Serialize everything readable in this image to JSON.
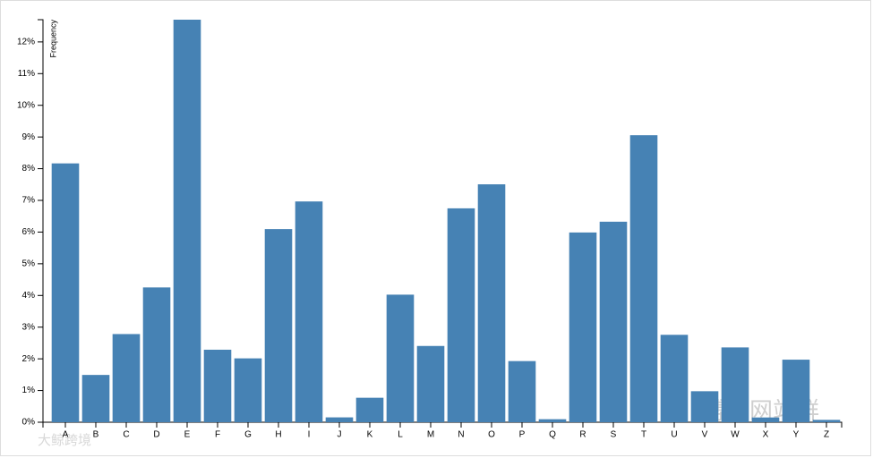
{
  "chart_data": {
    "type": "bar",
    "y_label": "Frequency",
    "categories": [
      "A",
      "B",
      "C",
      "D",
      "E",
      "F",
      "G",
      "H",
      "I",
      "J",
      "K",
      "L",
      "M",
      "N",
      "O",
      "P",
      "Q",
      "R",
      "S",
      "T",
      "U",
      "V",
      "W",
      "X",
      "Y",
      "Z"
    ],
    "values": [
      8.167,
      1.492,
      2.782,
      4.253,
      12.702,
      2.288,
      2.015,
      6.094,
      6.966,
      0.153,
      0.772,
      4.025,
      2.406,
      6.749,
      7.507,
      1.929,
      0.095,
      5.987,
      6.327,
      9.056,
      2.758,
      0.978,
      2.36,
      0.15,
      1.974,
      0.074
    ],
    "color": "#4682b4",
    "ylim": [
      0,
      12.702
    ],
    "yticks": [
      {
        "value": 0,
        "label": "0%"
      },
      {
        "value": 1,
        "label": "1%"
      },
      {
        "value": 2,
        "label": "2%"
      },
      {
        "value": 3,
        "label": "3%"
      },
      {
        "value": 4,
        "label": "4%"
      },
      {
        "value": 5,
        "label": "5%"
      },
      {
        "value": 6,
        "label": "6%"
      },
      {
        "value": 7,
        "label": "7%"
      },
      {
        "value": 8,
        "label": "8%"
      },
      {
        "value": 9,
        "label": "9%"
      },
      {
        "value": 10,
        "label": "10%"
      },
      {
        "value": 11,
        "label": "11%"
      },
      {
        "value": 12,
        "label": "12%"
      }
    ]
  },
  "watermarks": [
    "博达网站群",
    "大鲸跨境"
  ]
}
